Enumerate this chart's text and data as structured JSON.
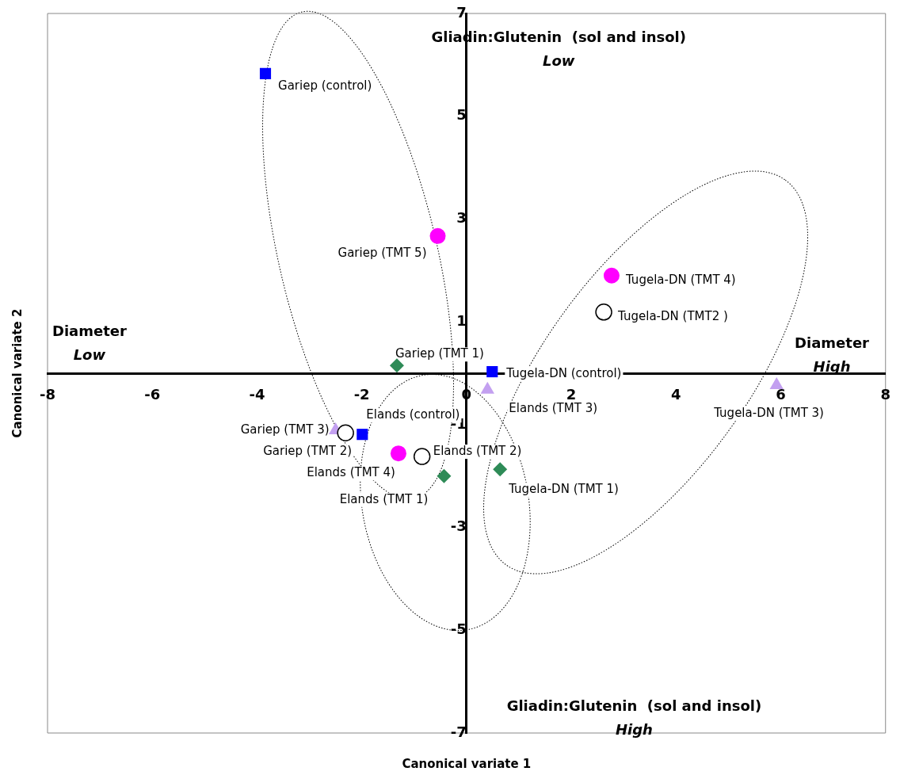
{
  "chart_data": {
    "type": "scatter",
    "xlabel": "Canonical variate 1",
    "ylabel": "Canonical variate 2",
    "xlim": [
      -8,
      8
    ],
    "ylim": [
      -7,
      7
    ],
    "xticks": [
      -8,
      -6,
      -4,
      -2,
      0,
      2,
      4,
      6,
      8
    ],
    "yticks": [
      -7,
      -5,
      -3,
      -1,
      1,
      3,
      5,
      7
    ],
    "grid": false,
    "legend": false,
    "series": [
      {
        "color": "#0000ff",
        "marker": "square",
        "x": [
          -3.84,
          0.49,
          -1.99
        ],
        "values": [
          5.83,
          0.03,
          -1.19
        ],
        "value_labels": [
          "Gariep (control)",
          "Tugela-DN (control)",
          "Elands (control)"
        ]
      },
      {
        "color": "#000000",
        "marker": "circle",
        "x": [
          2.62,
          -0.85,
          -2.31
        ],
        "values": [
          1.19,
          -1.62,
          -1.16
        ],
        "value_labels": [
          "Tugela-DN (TMT2 )",
          "Elands (TMT 2)",
          "Gariep (TMT 2)"
        ]
      },
      {
        "color": "#c3a0f0",
        "marker": "triangle",
        "x": [
          0.4,
          5.92,
          -2.5
        ],
        "values": [
          -0.32,
          -0.23,
          -1.11
        ],
        "value_labels": [
          "Elands (TMT 3)",
          "Tugela-DN (TMT 3)",
          "Gariep (TMT 3)"
        ]
      },
      {
        "color": "#2e8b57",
        "marker": "diamond",
        "x": [
          -1.33,
          -0.43,
          0.64
        ],
        "values": [
          0.15,
          -2.0,
          -1.87
        ],
        "value_labels": [
          "Gariep (TMT 1)",
          "Elands (TMT 1)",
          "Tugela-DN (TMT 1)"
        ]
      },
      {
        "color": "#ff00ff",
        "marker": "circle",
        "x": [
          -0.55,
          2.77,
          -1.3
        ],
        "values": [
          2.67,
          1.9,
          -1.56
        ],
        "value_labels": [
          "Gariep (TMT 5)",
          "Tugela-DN (TMT 4)",
          "Elands (TMT 4)"
        ]
      }
    ],
    "annotations": [
      "Gliadin:Glutenin  (sol and insol)\nLow",
      "Diameter\nHigh",
      "Gliadin:Glutenin  (sol and insol)\nHigh",
      "Diameter\nLow"
    ]
  }
}
